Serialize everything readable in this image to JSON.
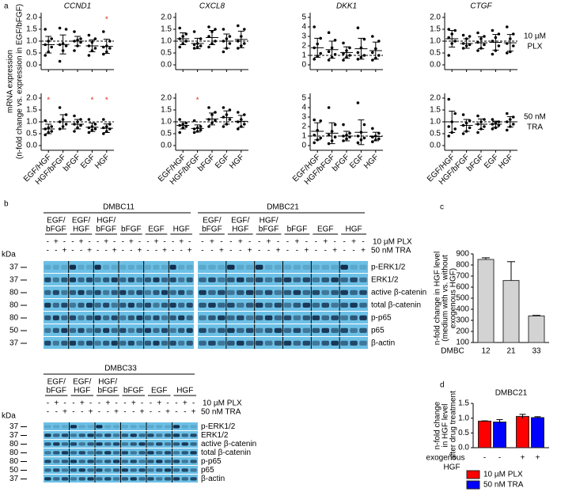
{
  "panel_labels": [
    "a",
    "b",
    "c",
    "d"
  ],
  "panel_a_ylabel": [
    "mRNA expression",
    "(n-fold change vs. expression in EGF/bFGF)"
  ],
  "chart_data": [
    {
      "type": "dotplot",
      "title": "CCND1",
      "ylim": [
        -0.2,
        2.2
      ],
      "yticks": [
        {
          "value": 0,
          "label": "0.0"
        },
        {
          "value": 0.5,
          "label": "0.5"
        },
        {
          "value": 1,
          "label": "1.0"
        },
        {
          "value": 1.5,
          "label": "1.5"
        },
        {
          "value": 2,
          "label": "2.0"
        }
      ],
      "reference_line": 1,
      "values": [
        [
          0.4,
          0.55,
          0.75,
          0.85,
          1.0,
          1.1,
          1.5
        ],
        [
          0.15,
          0.6,
          0.8,
          0.85,
          0.9,
          1.5,
          1.55
        ],
        [
          0.6,
          0.8,
          0.95,
          1.0,
          1.05,
          1.1,
          1.4
        ],
        [
          0.4,
          0.6,
          0.7,
          0.8,
          0.95,
          1.1,
          1.25
        ],
        [
          0.45,
          0.55,
          0.7,
          0.75,
          0.8,
          1.0,
          1.4
        ]
      ],
      "means": [
        0.85,
        0.86,
        1.0,
        0.8,
        0.78
      ],
      "sd": [
        0.35,
        0.4,
        0.2,
        0.25,
        0.3
      ],
      "stars": [
        null,
        null,
        null,
        null,
        "*"
      ]
    },
    {
      "type": "dotplot",
      "title": "CXCL8",
      "ylim": [
        -0.2,
        2.2
      ],
      "yticks": [
        {
          "value": 0,
          "label": "0.0"
        },
        {
          "value": 0.5,
          "label": "0.5"
        },
        {
          "value": 1,
          "label": "1.0"
        },
        {
          "value": 1.5,
          "label": "1.5"
        },
        {
          "value": 2,
          "label": "2.0"
        }
      ],
      "reference_line": 1,
      "values": [
        [
          0.75,
          0.9,
          1.0,
          1.1,
          1.2,
          1.3,
          1.55
        ],
        [
          0.7,
          0.75,
          0.8,
          0.85,
          0.9,
          1.1,
          1.4
        ],
        [
          0.75,
          0.9,
          1.0,
          1.2,
          1.4,
          1.5,
          1.6
        ],
        [
          0.55,
          0.7,
          0.9,
          1.0,
          1.1,
          1.2,
          1.5
        ],
        [
          0.7,
          0.8,
          0.9,
          1.0,
          1.2,
          1.5,
          1.65
        ]
      ],
      "means": [
        1.1,
        0.9,
        1.15,
        1.0,
        1.07
      ],
      "sd": [
        0.25,
        0.22,
        0.3,
        0.3,
        0.35
      ]
    },
    {
      "type": "dotplot",
      "title": "DKK1",
      "ylim": [
        -0.5,
        5.5
      ],
      "yticks": [
        0,
        1,
        2,
        3,
        4,
        5
      ],
      "reference_line": 1,
      "values": [
        [
          0.6,
          0.9,
          1.2,
          1.8,
          2.2,
          2.8,
          4.0
        ],
        [
          0.5,
          0.8,
          1.1,
          1.4,
          1.8,
          2.6,
          3.4
        ],
        [
          0.5,
          0.8,
          1.0,
          1.2,
          1.5,
          1.8,
          2.3
        ],
        [
          0.6,
          0.8,
          1.0,
          1.3,
          1.8,
          2.7,
          3.9
        ],
        [
          0.5,
          0.7,
          1.0,
          1.3,
          1.7,
          2.5,
          3.0
        ]
      ],
      "means": [
        1.8,
        1.6,
        1.3,
        1.7,
        1.5
      ],
      "sd": [
        1.0,
        0.9,
        0.6,
        1.1,
        0.9
      ]
    },
    {
      "type": "dotplot",
      "title": "CTGF",
      "row_label": [
        "10 µM",
        "PLX"
      ],
      "ylim": [
        -0.2,
        2.2
      ],
      "yticks": [
        {
          "value": 0,
          "label": "0.0"
        },
        {
          "value": 0.5,
          "label": "0.5"
        },
        {
          "value": 1,
          "label": "1.0"
        },
        {
          "value": 1.5,
          "label": "1.5"
        },
        {
          "value": 2,
          "label": "2.0"
        }
      ],
      "reference_line": 1,
      "values": [
        [
          0.4,
          0.9,
          1.0,
          1.15,
          1.3,
          1.45,
          1.5
        ],
        [
          0.7,
          0.8,
          0.85,
          0.9,
          1.1,
          1.2,
          1.25
        ],
        [
          0.6,
          0.7,
          0.85,
          0.95,
          1.1,
          1.2,
          1.35
        ],
        [
          0.45,
          0.6,
          0.8,
          1.0,
          1.15,
          1.3,
          1.45
        ],
        [
          0.5,
          0.55,
          0.8,
          0.9,
          1.1,
          1.3,
          1.6
        ]
      ],
      "means": [
        1.1,
        0.9,
        0.93,
        0.95,
        0.93
      ],
      "sd": [
        0.35,
        0.2,
        0.25,
        0.33,
        0.35
      ]
    },
    {
      "type": "dotplot",
      "categories": [
        "EGF/HGF",
        "HGF/bFGF",
        "bFGF",
        "EGF",
        "HGF"
      ],
      "ylim": [
        -0.2,
        2.2
      ],
      "yticks": [
        {
          "value": 0,
          "label": "0.0"
        },
        {
          "value": 0.5,
          "label": "0.5"
        },
        {
          "value": 1,
          "label": "1.0"
        },
        {
          "value": 1.5,
          "label": "1.5"
        },
        {
          "value": 2,
          "label": "2.0"
        }
      ],
      "reference_line": 1,
      "values": [
        [
          0.45,
          0.55,
          0.6,
          0.7,
          0.75,
          0.8,
          1.05
        ],
        [
          0.7,
          0.8,
          0.9,
          1.0,
          1.1,
          1.3,
          1.6
        ],
        [
          0.6,
          0.75,
          0.85,
          0.9,
          1.0,
          1.1,
          1.25
        ],
        [
          0.55,
          0.65,
          0.7,
          0.75,
          0.8,
          0.9,
          1.1
        ],
        [
          0.5,
          0.6,
          0.7,
          0.75,
          0.8,
          0.9,
          1.1
        ]
      ],
      "means": [
        0.7,
        1.0,
        0.9,
        0.77,
        0.73
      ],
      "sd": [
        0.2,
        0.3,
        0.2,
        0.18,
        0.18
      ],
      "stars": [
        "*",
        null,
        null,
        "*",
        "*"
      ]
    },
    {
      "type": "dotplot",
      "categories": [
        "EGF/HGF",
        "HGF/bFGF",
        "bFGF",
        "EGF",
        "HGF"
      ],
      "ylim": [
        -0.2,
        2.2
      ],
      "yticks": [
        {
          "value": 0,
          "label": "0.0"
        },
        {
          "value": 0.5,
          "label": "0.5"
        },
        {
          "value": 1,
          "label": "1.0"
        },
        {
          "value": 1.5,
          "label": "1.5"
        },
        {
          "value": 2,
          "label": "2.0"
        }
      ],
      "reference_line": 1,
      "values": [
        [
          0.55,
          0.75,
          0.8,
          0.85,
          0.9,
          0.95,
          1.1
        ],
        [
          0.55,
          0.6,
          0.65,
          0.7,
          0.75,
          0.8,
          1.05
        ],
        [
          0.8,
          0.95,
          1.05,
          1.1,
          1.3,
          1.4,
          1.6
        ],
        [
          0.8,
          0.9,
          1.1,
          1.2,
          1.3,
          1.5,
          1.6
        ],
        [
          0.7,
          0.8,
          0.9,
          1.0,
          1.1,
          1.3,
          1.4
        ]
      ],
      "means": [
        0.85,
        0.72,
        1.12,
        1.18,
        1.02
      ],
      "sd": [
        0.15,
        0.15,
        0.25,
        0.28,
        0.25
      ],
      "stars": [
        null,
        "*",
        null,
        null,
        null
      ]
    },
    {
      "type": "dotplot",
      "categories": [
        "EGF/HGF",
        "HGF/bFGF",
        "bFGF",
        "EGF",
        "HGF"
      ],
      "ylim": [
        -0.5,
        5.5
      ],
      "yticks": [
        0,
        1,
        2,
        3,
        4,
        5
      ],
      "reference_line": 1,
      "values": [
        [
          0.3,
          0.6,
          0.8,
          1.1,
          1.6,
          2.6,
          2.7
        ],
        [
          0.2,
          0.5,
          0.9,
          1.1,
          1.5,
          2.2,
          4.0
        ],
        [
          0.5,
          0.7,
          0.9,
          1.0,
          1.1,
          1.3,
          2.2
        ],
        [
          0.3,
          0.6,
          0.8,
          1.0,
          1.4,
          2.2,
          4.5
        ],
        [
          0.4,
          0.6,
          0.7,
          0.9,
          1.0,
          1.3,
          1.8
        ]
      ],
      "means": [
        1.5,
        1.3,
        1.0,
        1.4,
        0.95
      ],
      "sd": [
        0.9,
        1.1,
        0.5,
        1.3,
        0.45
      ]
    },
    {
      "type": "dotplot",
      "categories": [
        "EGF/HGF",
        "HGF/bFGF",
        "bFGF",
        "EGF",
        "HGF"
      ],
      "row_label": [
        "50 nM",
        "TRA"
      ],
      "ylim": [
        -0.2,
        2.2
      ],
      "yticks": [
        {
          "value": 0,
          "label": "0.0"
        },
        {
          "value": 0.5,
          "label": "0.5"
        },
        {
          "value": 1,
          "label": "1.0"
        },
        {
          "value": 1.5,
          "label": "1.5"
        },
        {
          "value": 2,
          "label": "2.0"
        }
      ],
      "reference_line": 1,
      "values": [
        [
          0.4,
          0.55,
          0.7,
          0.8,
          1.0,
          1.35,
          1.95
        ],
        [
          0.5,
          0.6,
          0.75,
          0.85,
          0.95,
          1.05,
          1.3
        ],
        [
          0.55,
          0.7,
          0.8,
          0.9,
          1.0,
          1.1,
          1.25
        ],
        [
          0.7,
          0.75,
          0.85,
          0.9,
          0.95,
          1.0,
          1.1
        ],
        [
          0.65,
          0.8,
          0.9,
          1.0,
          1.1,
          1.2,
          1.35
        ]
      ],
      "means": [
        1.0,
        0.85,
        0.9,
        0.9,
        1.0
      ],
      "sd": [
        0.45,
        0.25,
        0.22,
        0.13,
        0.22
      ]
    },
    {
      "type": "bar",
      "ylabel": [
        "n-fold change in HGF level",
        "(medium with vs. without",
        "exogenous HGF)"
      ],
      "category_prefix": "DMBC",
      "categories": [
        "12",
        "21",
        "33"
      ],
      "values": [
        850,
        660,
        340
      ],
      "errors": [
        15,
        170,
        5
      ],
      "color": "#d3d3d3",
      "ylim": [
        100,
        900
      ],
      "yticks": [
        100,
        200,
        300,
        400,
        500,
        600,
        700,
        800,
        900
      ]
    },
    {
      "type": "grouped_bar",
      "title": "DMBC21",
      "ylabel": [
        "n-fold change",
        "in HGF level",
        "after drug treatment"
      ],
      "xlabel": [
        "exogenous",
        "HGF"
      ],
      "categories": [
        "-",
        "+"
      ],
      "series": [
        {
          "name": "10 µM PLX",
          "color": "#ff0000",
          "values": [
            0.9,
            1.06
          ],
          "errors": [
            0.01,
            0.07
          ]
        },
        {
          "name": "50 nM TRA",
          "color": "#0000ff",
          "values": [
            0.87,
            1.02
          ],
          "errors": [
            0.08,
            0.03
          ]
        }
      ],
      "ylim": [
        0,
        1.5
      ],
      "yticks": [
        {
          "value": 0,
          "label": "0.0"
        },
        {
          "value": 0.5,
          "label": "0.5"
        },
        {
          "value": 1,
          "label": "1.0"
        },
        {
          "value": 1.5,
          "label": "1.5"
        }
      ]
    }
  ],
  "blots": {
    "panels": [
      {
        "title": "DMBC11"
      },
      {
        "title": "DMBC21"
      },
      {
        "title": "DMBC33"
      }
    ],
    "groups": [
      [
        "EGF/",
        "bFGF"
      ],
      [
        "EGF/",
        "HGF"
      ],
      [
        "HGF/",
        "bFGF"
      ],
      [
        "bFGF"
      ],
      [
        "EGF"
      ],
      [
        "HGF"
      ]
    ],
    "signs": [
      [
        "-",
        "+",
        "-"
      ],
      [
        "-",
        "-",
        "+"
      ]
    ],
    "treatments": [
      "10 µM PLX",
      "50 nM TRA"
    ],
    "kda_label": "kDa",
    "rows": [
      {
        "kda": "37",
        "protein": "p-ERK1/2"
      },
      {
        "kda": "37",
        "protein": "ERK1/2"
      },
      {
        "kda": "80",
        "protein": "active β-catenin"
      },
      {
        "kda": "80",
        "protein": "total β-catenin"
      },
      {
        "kda": "80",
        "protein": "p-p65"
      },
      {
        "kda": "50",
        "protein": "p65"
      },
      {
        "kda": "37",
        "protein": "β-actin"
      }
    ]
  }
}
